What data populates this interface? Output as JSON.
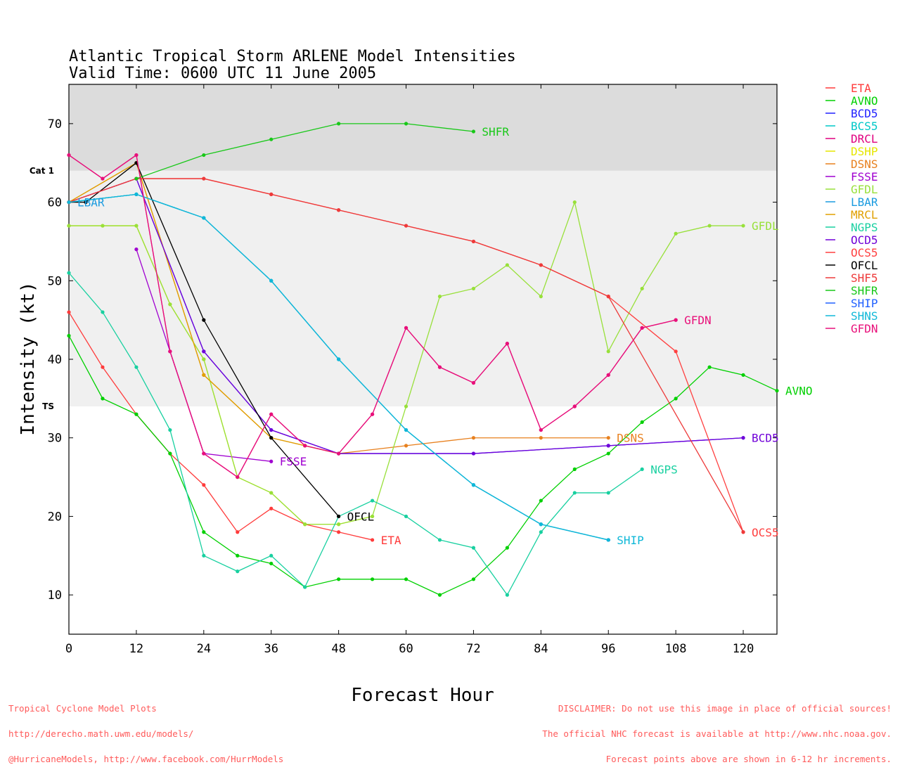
{
  "chart_data": {
    "type": "line",
    "title": "Atlantic Tropical Storm ARLENE Model Intensities",
    "subtitle": "Valid Time: 0600 UTC 11 June 2005",
    "xlabel": "Forecast Hour",
    "ylabel": "Intensity (kt)",
    "xlim": [
      0,
      126
    ],
    "ylim": [
      5,
      75
    ],
    "xticks": [
      0,
      12,
      24,
      36,
      48,
      60,
      72,
      84,
      96,
      108,
      120
    ],
    "yticks": [
      10,
      20,
      30,
      40,
      50,
      60,
      70
    ],
    "bands": [
      {
        "label": "Cat 1",
        "from": 64,
        "to": 75,
        "color": "#dcdcdc"
      },
      {
        "label": "TS",
        "from": 34,
        "to": 64,
        "color": "#f0f0f0"
      }
    ],
    "legend_position": "right",
    "series": [
      {
        "name": "ETA",
        "color": "#ff3b3b",
        "label": "ETA",
        "points": [
          [
            0,
            46
          ],
          [
            6,
            39
          ],
          [
            12,
            33
          ],
          [
            18,
            28
          ],
          [
            24,
            24
          ],
          [
            30,
            18
          ],
          [
            36,
            21
          ],
          [
            42,
            19
          ],
          [
            48,
            18
          ],
          [
            54,
            17
          ]
        ]
      },
      {
        "name": "AVNO",
        "color": "#00d000",
        "label": "AVNO",
        "points": [
          [
            0,
            43
          ],
          [
            6,
            35
          ],
          [
            12,
            33
          ],
          [
            18,
            28
          ],
          [
            24,
            18
          ],
          [
            30,
            15
          ],
          [
            36,
            14
          ],
          [
            42,
            11
          ],
          [
            48,
            12
          ],
          [
            54,
            12
          ],
          [
            60,
            12
          ],
          [
            66,
            10
          ],
          [
            72,
            12
          ],
          [
            78,
            16
          ],
          [
            84,
            22
          ],
          [
            90,
            26
          ],
          [
            96,
            28
          ],
          [
            102,
            32
          ],
          [
            108,
            35
          ],
          [
            114,
            39
          ],
          [
            120,
            38
          ],
          [
            126,
            36
          ]
        ]
      },
      {
        "name": "BCD5",
        "color": "#2020ff",
        "label": "BCD5",
        "points": [
          [
            0,
            60
          ],
          [
            12,
            63
          ],
          [
            24,
            41
          ],
          [
            36,
            31
          ],
          [
            48,
            28
          ],
          [
            72,
            28
          ],
          [
            96,
            29
          ],
          [
            120,
            30
          ]
        ]
      },
      {
        "name": "BCS5",
        "color": "#00c8c8",
        "label": "",
        "points": [
          [
            0,
            60
          ],
          [
            12,
            61
          ],
          [
            24,
            58
          ],
          [
            36,
            50
          ],
          [
            48,
            40
          ],
          [
            60,
            31
          ],
          [
            72,
            24
          ],
          [
            84,
            19
          ],
          [
            96,
            17
          ]
        ]
      },
      {
        "name": "DRCL",
        "color": "#e0007f",
        "label": "",
        "points": [
          [
            0,
            66
          ],
          [
            6,
            63
          ],
          [
            12,
            66
          ],
          [
            18,
            41
          ],
          [
            24,
            28
          ],
          [
            30,
            25
          ],
          [
            36,
            33
          ],
          [
            42,
            29
          ],
          [
            48,
            28
          ],
          [
            54,
            33
          ],
          [
            60,
            44
          ],
          [
            66,
            39
          ],
          [
            72,
            37
          ],
          [
            78,
            42
          ],
          [
            84,
            31
          ],
          [
            90,
            34
          ],
          [
            96,
            38
          ],
          [
            102,
            44
          ],
          [
            108,
            45
          ]
        ]
      },
      {
        "name": "DSHP",
        "color": "#e6e600",
        "label": "",
        "points": [
          [
            0,
            57
          ],
          [
            6,
            57
          ],
          [
            12,
            57
          ],
          [
            18,
            47
          ],
          [
            24,
            40
          ],
          [
            30,
            25
          ],
          [
            36,
            23
          ],
          [
            42,
            19
          ],
          [
            48,
            19
          ],
          [
            54,
            20
          ]
        ]
      },
      {
        "name": "DSNS",
        "color": "#e8801e",
        "label": "DSNS",
        "points": [
          [
            0,
            60
          ],
          [
            12,
            65
          ],
          [
            24,
            38
          ],
          [
            36,
            30
          ],
          [
            42,
            29
          ],
          [
            48,
            28
          ],
          [
            60,
            29
          ],
          [
            72,
            30
          ],
          [
            84,
            30
          ],
          [
            96,
            30
          ]
        ]
      },
      {
        "name": "FSSE",
        "color": "#a000d0",
        "label": "FSSE",
        "points": [
          [
            12,
            54
          ],
          [
            18,
            41
          ],
          [
            24,
            28
          ],
          [
            36,
            27
          ]
        ]
      },
      {
        "name": "GFDL",
        "color": "#98e03a",
        "label": "GFDL",
        "points": [
          [
            0,
            57
          ],
          [
            6,
            57
          ],
          [
            12,
            57
          ],
          [
            18,
            47
          ],
          [
            24,
            40
          ],
          [
            30,
            25
          ],
          [
            36,
            23
          ],
          [
            42,
            19
          ],
          [
            48,
            19
          ],
          [
            54,
            20
          ],
          [
            60,
            34
          ],
          [
            66,
            48
          ],
          [
            72,
            49
          ],
          [
            78,
            52
          ],
          [
            84,
            48
          ],
          [
            90,
            60
          ],
          [
            96,
            41
          ],
          [
            102,
            49
          ],
          [
            108,
            56
          ],
          [
            114,
            57
          ],
          [
            120,
            57
          ]
        ]
      },
      {
        "name": "LBAR",
        "color": "#1a9be0",
        "label": "LBAR",
        "points": [
          [
            0,
            60
          ],
          [
            12,
            61
          ],
          [
            24,
            58
          ],
          [
            36,
            50
          ],
          [
            48,
            40
          ],
          [
            60,
            31
          ],
          [
            72,
            24
          ],
          [
            84,
            19
          ],
          [
            96,
            17
          ]
        ]
      },
      {
        "name": "MRCL",
        "color": "#e0a000",
        "label": "",
        "points": [
          [
            0,
            60
          ],
          [
            12,
            65
          ],
          [
            24,
            38
          ],
          [
            36,
            30
          ],
          [
            42,
            29
          ],
          [
            48,
            28
          ]
        ]
      },
      {
        "name": "NGPS",
        "color": "#18d0a0",
        "label": "NGPS",
        "points": [
          [
            0,
            51
          ],
          [
            6,
            46
          ],
          [
            12,
            39
          ],
          [
            18,
            31
          ],
          [
            24,
            15
          ],
          [
            30,
            13
          ],
          [
            36,
            15
          ],
          [
            42,
            11
          ],
          [
            48,
            20
          ],
          [
            54,
            22
          ],
          [
            60,
            20
          ],
          [
            66,
            17
          ],
          [
            72,
            16
          ],
          [
            78,
            10
          ],
          [
            84,
            18
          ],
          [
            90,
            23
          ],
          [
            96,
            23
          ],
          [
            102,
            26
          ]
        ]
      },
      {
        "name": "OCD5",
        "color": "#7000d8",
        "label": "",
        "points": [
          [
            0,
            60
          ],
          [
            12,
            63
          ],
          [
            24,
            41
          ],
          [
            36,
            31
          ],
          [
            48,
            28
          ],
          [
            72,
            28
          ],
          [
            96,
            29
          ],
          [
            120,
            30
          ]
        ]
      },
      {
        "name": "OCS5",
        "color": "#ff4040",
        "label": "OCS5",
        "points": [
          [
            0,
            60
          ],
          [
            12,
            63
          ],
          [
            24,
            63
          ],
          [
            36,
            61
          ],
          [
            48,
            59
          ],
          [
            60,
            57
          ],
          [
            72,
            55
          ],
          [
            84,
            52
          ],
          [
            96,
            48
          ],
          [
            108,
            41
          ],
          [
            120,
            18
          ]
        ]
      },
      {
        "name": "OFCL",
        "color": "#000000",
        "label": "OFCL",
        "points": [
          [
            0,
            60
          ],
          [
            3,
            60
          ],
          [
            12,
            65
          ],
          [
            24,
            45
          ],
          [
            36,
            30
          ],
          [
            48,
            20
          ]
        ]
      },
      {
        "name": "SHF5",
        "color": "#ee3a3a",
        "label": "",
        "points": [
          [
            0,
            60
          ],
          [
            12,
            63
          ],
          [
            24,
            63
          ],
          [
            36,
            61
          ],
          [
            48,
            59
          ],
          [
            60,
            57
          ],
          [
            72,
            55
          ],
          [
            84,
            52
          ],
          [
            96,
            48
          ],
          [
            120,
            18
          ]
        ]
      },
      {
        "name": "SHFR",
        "color": "#18c818",
        "label": "SHFR",
        "points": [
          [
            12,
            63
          ],
          [
            24,
            66
          ],
          [
            36,
            68
          ],
          [
            48,
            70
          ],
          [
            60,
            70
          ],
          [
            72,
            69
          ]
        ]
      },
      {
        "name": "SHIP",
        "color": "#2060ff",
        "label": "SHIP",
        "points": [
          [
            96,
            17
          ]
        ]
      },
      {
        "name": "SHNS",
        "color": "#10b8d8",
        "label": "",
        "points": [
          [
            0,
            60
          ],
          [
            12,
            61
          ],
          [
            24,
            58
          ],
          [
            36,
            50
          ],
          [
            48,
            40
          ],
          [
            60,
            31
          ],
          [
            72,
            24
          ],
          [
            84,
            19
          ],
          [
            96,
            17
          ]
        ]
      },
      {
        "name": "GFDN",
        "color": "#e8107a",
        "label": "GFDN",
        "points": [
          [
            0,
            66
          ],
          [
            6,
            63
          ],
          [
            12,
            66
          ],
          [
            18,
            41
          ],
          [
            24,
            28
          ],
          [
            30,
            25
          ],
          [
            36,
            33
          ],
          [
            42,
            29
          ],
          [
            48,
            28
          ],
          [
            54,
            33
          ],
          [
            60,
            44
          ],
          [
            66,
            39
          ],
          [
            72,
            37
          ],
          [
            78,
            42
          ],
          [
            84,
            31
          ],
          [
            90,
            34
          ],
          [
            96,
            38
          ],
          [
            102,
            44
          ],
          [
            108,
            45
          ]
        ]
      }
    ],
    "end_labels": [
      {
        "text": "SHFR",
        "x": 72,
        "y": 69,
        "color": "#18c818"
      },
      {
        "text": "LBAR",
        "x": 0,
        "y": 60,
        "color": "#1a9be0"
      },
      {
        "text": "GFDL",
        "x": 120,
        "y": 57,
        "color": "#98e03a"
      },
      {
        "text": "GFDN",
        "x": 108,
        "y": 45,
        "color": "#e8107a"
      },
      {
        "text": "AVNO",
        "x": 126,
        "y": 36,
        "color": "#00d000"
      },
      {
        "text": "BCD5",
        "x": 120,
        "y": 30,
        "color": "#7000d8"
      },
      {
        "text": "DSNS",
        "x": 96,
        "y": 30,
        "color": "#e8801e"
      },
      {
        "text": "FSSE",
        "x": 36,
        "y": 27,
        "color": "#a000d0"
      },
      {
        "text": "NGPS",
        "x": 102,
        "y": 26,
        "color": "#18d0a0"
      },
      {
        "text": "OFCL",
        "x": 48,
        "y": 20,
        "color": "#000000"
      },
      {
        "text": "ETA",
        "x": 54,
        "y": 17,
        "color": "#ff3b3b"
      },
      {
        "text": "SHIP",
        "x": 96,
        "y": 17,
        "color": "#10b8d8"
      },
      {
        "text": "OCS5",
        "x": 120,
        "y": 18,
        "color": "#ff4040"
      }
    ]
  },
  "footer": {
    "left_lines": [
      "Tropical Cyclone Model Plots",
      "http://derecho.math.uwm.edu/models/",
      "@HurricaneModels, http://www.facebook.com/HurrModels"
    ],
    "right_lines": [
      "DISCLAIMER: Do not use this image in place of official sources!",
      "The official NHC forecast is available at http://www.nhc.noaa.gov.",
      "Forecast points above are shown in 6-12 hr increments."
    ]
  }
}
